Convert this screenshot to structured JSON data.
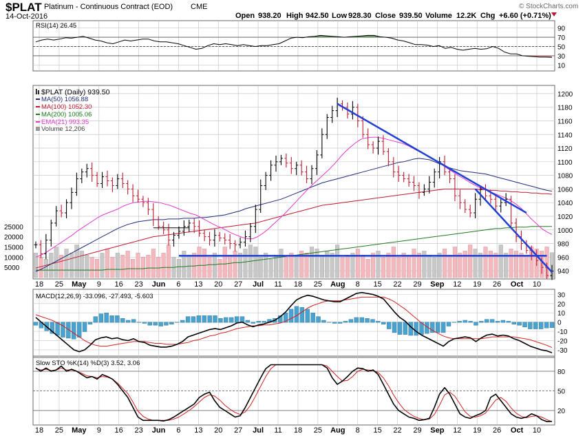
{
  "header": {
    "symbol": "$PLAT",
    "name": "Platinum - Continuous Contract (EOD)",
    "exchange": "CME",
    "date": "14-Oct-2016",
    "open_label": "Open",
    "open": "938.20",
    "high_label": "High",
    "high": "942.50",
    "low_label": "Low",
    "low": "928.30",
    "close_label": "Close",
    "close": "939.50",
    "volume_label": "Volume",
    "volume": "12.2K",
    "chg_label": "Chg",
    "chg": "+6.60 (+0.71%)",
    "watermark": "© StockCharts.com"
  },
  "colors": {
    "grid": "#c8c8c8",
    "ma50": "#1f2a7a",
    "ma100": "#c0192f",
    "ma200": "#1d7a1d",
    "ema21": "#e23ad0",
    "volume_up": "#c8c8c8",
    "volume_down": "#f2b9be",
    "trend": "#1f3fd6",
    "macd_hist": "#4aa3cf",
    "fill_green": "#4f8b4f",
    "fill_red": "#d07a7a"
  },
  "chart_data": [
    {
      "type": "line",
      "name": "rsi",
      "title": "RSI(14) 26.45",
      "ylim": [
        0,
        100
      ],
      "y_ticks": [
        "90",
        "70",
        "50",
        "30",
        "10"
      ],
      "levels": [
        70,
        50,
        30
      ],
      "values": [
        60,
        64,
        66,
        64,
        66,
        69,
        68,
        70,
        72,
        68,
        64,
        62,
        58,
        56,
        60,
        64,
        62,
        64,
        66,
        66,
        62,
        60,
        60,
        58,
        56,
        52,
        48,
        44,
        46,
        52,
        56,
        54,
        56,
        54,
        52,
        54,
        52,
        50,
        52,
        52,
        54,
        56,
        62,
        68,
        70,
        69,
        71,
        72,
        74,
        73,
        72,
        71,
        70,
        71,
        72,
        73,
        74,
        74,
        71,
        70,
        68,
        64,
        62,
        58,
        54,
        54,
        53,
        50,
        52,
        46,
        48,
        44,
        42,
        44,
        46,
        44,
        45,
        50,
        46,
        38,
        34,
        34,
        30,
        29,
        28,
        27,
        27,
        26.45
      ]
    },
    {
      "type": "candlestick",
      "name": "price",
      "legend": {
        "price": "$PLAT (Daily) 939.50",
        "ma50": "MA(50) 1056.88",
        "ma100": "MA(100) 1052.30",
        "ma200": "MA(200) 1005.06",
        "ema21": "EMA(21) 993.35",
        "volume": "Volume 12,206"
      },
      "ylim": [
        930,
        1210
      ],
      "y_ticks": [
        "1200",
        "1180",
        "1160",
        "1140",
        "1120",
        "1100",
        "1080",
        "1060",
        "1040",
        "1020",
        "1000",
        "980",
        "960",
        "940"
      ],
      "volume_ticks": [
        "25000",
        "20000",
        "15000",
        "10000",
        "5000"
      ],
      "volume_max": 32000,
      "x_labels": [
        "18",
        "25",
        "May",
        "9",
        "16",
        "23",
        "Jun",
        "6",
        "13",
        "20",
        "27",
        "Jul",
        "11",
        "18",
        "25",
        "Aug",
        "8",
        "15",
        "22",
        "29",
        "Sep",
        "12",
        "19",
        "26",
        "Oct",
        "10"
      ],
      "bold_x_labels": [
        "May",
        "Jun",
        "Jul",
        "Aug",
        "Sep",
        "Oct"
      ],
      "close": [
        978,
        965,
        985,
        1010,
        1028,
        1025,
        1040,
        1055,
        1075,
        1085,
        1090,
        1080,
        1068,
        1078,
        1072,
        1065,
        1075,
        1068,
        1060,
        1050,
        1045,
        1040,
        1030,
        1015,
        1005,
        1000,
        985,
        992,
        998,
        1005,
        1010,
        1005,
        995,
        990,
        985,
        992,
        988,
        985,
        980,
        978,
        982,
        990,
        1005,
        1030,
        1065,
        1080,
        1095,
        1100,
        1105,
        1098,
        1090,
        1095,
        1085,
        1075,
        1090,
        1110,
        1140,
        1165,
        1175,
        1185,
        1180,
        1170,
        1180,
        1160,
        1140,
        1125,
        1120,
        1130,
        1115,
        1100,
        1085,
        1080,
        1075,
        1070,
        1065,
        1055,
        1060,
        1070,
        1085,
        1100,
        1085,
        1075,
        1050,
        1040,
        1030,
        1025,
        1045,
        1060,
        1050,
        1045,
        1035,
        1040,
        1045,
        1010,
        990,
        980,
        970,
        962,
        955,
        945,
        933,
        939.5
      ],
      "ma50": [
        939,
        942,
        946,
        950,
        954,
        958,
        962,
        966,
        970,
        974,
        978,
        982,
        986,
        990,
        994,
        998,
        1002,
        1005,
        1008,
        1010,
        1012,
        1013,
        1014,
        1015,
        1015,
        1015,
        1016,
        1016,
        1016,
        1017,
        1017,
        1017,
        1018,
        1018,
        1019,
        1020,
        1021,
        1022,
        1024,
        1026,
        1028,
        1031,
        1033,
        1035,
        1037,
        1039,
        1041,
        1043,
        1045,
        1048,
        1051,
        1054,
        1057,
        1060,
        1063,
        1066,
        1069,
        1071,
        1073,
        1075,
        1077,
        1079,
        1081,
        1083,
        1085,
        1087,
        1089,
        1091,
        1093,
        1095,
        1097,
        1099,
        1100,
        1102,
        1104,
        1105,
        1104,
        1103,
        1100,
        1097,
        1094,
        1091,
        1089,
        1087,
        1086,
        1085,
        1084,
        1083,
        1082,
        1080,
        1078,
        1076,
        1074,
        1072,
        1070,
        1068,
        1066,
        1064,
        1062,
        1060,
        1058,
        1056.88
      ],
      "ma100": [
        944,
        946,
        948,
        950,
        952,
        954,
        956,
        958,
        960,
        962,
        964,
        966,
        968,
        970,
        972,
        974,
        976,
        978,
        980,
        982,
        984,
        986,
        988,
        990,
        991,
        992,
        993,
        994,
        995,
        996,
        997,
        998,
        999,
        1000,
        1001,
        1002,
        1003,
        1004,
        1005,
        1006,
        1007,
        1008,
        1009,
        1010,
        1012,
        1014,
        1016,
        1018,
        1020,
        1022,
        1024,
        1026,
        1028,
        1030,
        1032,
        1034,
        1036,
        1037,
        1038,
        1039,
        1040,
        1041,
        1042,
        1043,
        1044,
        1045,
        1046,
        1047,
        1048,
        1049,
        1050,
        1051,
        1052,
        1053,
        1054,
        1055,
        1056,
        1057,
        1058,
        1059,
        1060,
        1060,
        1060,
        1060,
        1060,
        1060,
        1060,
        1059,
        1059,
        1058,
        1058,
        1057,
        1057,
        1056,
        1056,
        1055,
        1055,
        1054,
        1054,
        1053,
        1053,
        1052.3
      ],
      "ma200": [
        941,
        941,
        941,
        941,
        941,
        941,
        941,
        941,
        941,
        941,
        941,
        941,
        941,
        941,
        942,
        942,
        942,
        942,
        943,
        943,
        943,
        943,
        944,
        944,
        944,
        945,
        945,
        945,
        946,
        946,
        947,
        947,
        948,
        948,
        949,
        949,
        950,
        950,
        951,
        952,
        952,
        953,
        954,
        955,
        956,
        957,
        958,
        959,
        960,
        961,
        962,
        963,
        964,
        965,
        966,
        967,
        968,
        969,
        970,
        971,
        972,
        973,
        974,
        975,
        976,
        977,
        978,
        979,
        980,
        981,
        982,
        983,
        984,
        985,
        986,
        987,
        988,
        989,
        990,
        991,
        992,
        993,
        994,
        995,
        996,
        997,
        998,
        999,
        1000,
        1001,
        1002,
        1002,
        1003,
        1003,
        1004,
        1004,
        1004,
        1005,
        1005,
        1005,
        1005,
        1005.06
      ],
      "ema21": [
        960,
        963,
        967,
        972,
        977,
        982,
        987,
        992,
        998,
        1003,
        1008,
        1013,
        1018,
        1022,
        1025,
        1028,
        1031,
        1035,
        1038,
        1040,
        1041,
        1042,
        1042,
        1041,
        1040,
        1038,
        1036,
        1033,
        1030,
        1027,
        1024,
        1022,
        1018,
        1014,
        1010,
        1006,
        1003,
        999,
        995,
        992,
        989,
        987,
        987,
        990,
        995,
        1001,
        1008,
        1015,
        1022,
        1030,
        1038,
        1046,
        1054,
        1062,
        1069,
        1076,
        1083,
        1090,
        1098,
        1107,
        1115,
        1122,
        1128,
        1133,
        1135,
        1136,
        1136,
        1135,
        1133,
        1131,
        1129,
        1127,
        1124,
        1120,
        1116,
        1112,
        1108,
        1104,
        1099,
        1094,
        1089,
        1084,
        1079,
        1075,
        1070,
        1066,
        1062,
        1059,
        1056,
        1053,
        1050,
        1047,
        1043,
        1038,
        1032,
        1024,
        1016,
        1009,
        1002,
        997,
        993.35
      ],
      "volume": [
        12000,
        10000,
        9000,
        12000,
        15000,
        11000,
        14000,
        12000,
        16000,
        13000,
        11000,
        10000,
        9000,
        12000,
        14000,
        10000,
        12000,
        11000,
        13000,
        9000,
        12000,
        10000,
        11000,
        14000,
        10000,
        12000,
        16000,
        10000,
        9000,
        13000,
        11000,
        12000,
        15000,
        14000,
        10000,
        12000,
        9000,
        15000,
        11000,
        13000,
        12000,
        14000,
        16000,
        15000,
        10000,
        12000,
        9000,
        11000,
        14000,
        10000,
        12000,
        11000,
        13000,
        12000,
        15000,
        14000,
        11000,
        13000,
        12000,
        16000,
        10000,
        11000,
        12000,
        14000,
        11000,
        9000,
        12000,
        13000,
        10000,
        12000,
        15000,
        10000,
        12000,
        11000,
        14000,
        12000,
        13000,
        11000,
        10000,
        12000,
        14000,
        11000,
        15000,
        12000,
        13000,
        16000,
        14000,
        12000,
        15000,
        13000,
        12000,
        16000,
        12000,
        14000,
        13000,
        12000,
        11000,
        15000,
        14000,
        13000,
        15000,
        12206
      ],
      "support_level": 962,
      "trendlines": [
        {
          "from": {
            "bar": 59,
            "price": 1185
          },
          "to": {
            "bar": 96,
            "price": 1025
          }
        },
        {
          "from": {
            "bar": 86,
            "price": 1060
          },
          "to": {
            "bar": 101,
            "price": 938
          }
        }
      ]
    },
    {
      "type": "line",
      "name": "macd",
      "title": "MACD(12,26,9) -33.096, -27.493, -5.603",
      "ylim": [
        -36,
        34
      ],
      "y_ticks": [
        "30",
        "20",
        "10",
        "0",
        "-10",
        "-20",
        "-30"
      ],
      "macd": [
        5,
        0,
        -5,
        -10,
        -15,
        -20,
        -25,
        -30,
        -32,
        -30,
        -25,
        -19,
        -17,
        -16,
        -18,
        -17,
        -19,
        -20,
        -18,
        -21,
        -22,
        -25,
        -26,
        -27,
        -27,
        -26,
        -24,
        -21,
        -16,
        -14,
        -12,
        -10,
        -8,
        -7,
        -8,
        -6,
        -4,
        -1,
        0,
        -3,
        -5,
        -3,
        -2,
        0,
        2,
        6,
        11,
        18,
        24,
        27,
        29,
        28,
        26,
        24,
        23,
        22,
        22,
        25,
        28,
        31,
        32,
        31,
        30,
        28,
        25,
        18,
        11,
        5,
        1,
        -5,
        -10,
        -14,
        -17,
        -20,
        -23,
        -26,
        -21,
        -18,
        -17,
        -16,
        -17,
        -21,
        -17,
        -14,
        -13,
        -15,
        -14,
        -15,
        -18,
        -20,
        -23,
        -26,
        -28,
        -30,
        -31,
        -33.096
      ],
      "signal": [
        8,
        6,
        4,
        2,
        -1,
        -4,
        -8,
        -12,
        -16,
        -20,
        -23,
        -25,
        -26,
        -26,
        -25,
        -24,
        -23,
        -22,
        -21,
        -21,
        -21,
        -22,
        -23,
        -23,
        -24,
        -24,
        -24,
        -23,
        -22,
        -20,
        -19,
        -17,
        -15,
        -14,
        -12,
        -11,
        -9,
        -7,
        -6,
        -5,
        -4,
        -4,
        -3,
        -3,
        -2,
        -1,
        1,
        4,
        7,
        11,
        15,
        18,
        20,
        22,
        23,
        23,
        23,
        24,
        25,
        26,
        27,
        27,
        27,
        27,
        27,
        25,
        22,
        18,
        14,
        9,
        4,
        -1,
        -5,
        -9,
        -12,
        -15,
        -17,
        -18,
        -18,
        -18,
        -18,
        -18,
        -18,
        -17,
        -16,
        -16,
        -16,
        -16,
        -16,
        -17,
        -18,
        -19,
        -21,
        -23,
        -25,
        -27.493
      ]
    },
    {
      "type": "line",
      "name": "stochastic",
      "title": "Slow STO %K(14) %D(3) 3.52, 3.06",
      "ylim": [
        0,
        100
      ],
      "y_ticks": [
        "80",
        "50",
        "20"
      ],
      "levels": [
        80,
        50,
        20
      ],
      "k": [
        85,
        80,
        85,
        80,
        82,
        88,
        80,
        83,
        80,
        75,
        70,
        72,
        68,
        75,
        72,
        68,
        60,
        50,
        40,
        25,
        10,
        5,
        5,
        5,
        5,
        4,
        6,
        10,
        15,
        20,
        25,
        30,
        40,
        45,
        48,
        35,
        25,
        20,
        15,
        10,
        12,
        25,
        40,
        55,
        70,
        84,
        90,
        90,
        90,
        90,
        90,
        90,
        90,
        90,
        90,
        90,
        90,
        85,
        70,
        60,
        65,
        72,
        80,
        85,
        84,
        80,
        82,
        75,
        60,
        45,
        30,
        20,
        15,
        10,
        8,
        5,
        6,
        8,
        25,
        45,
        55,
        45,
        30,
        15,
        10,
        8,
        12,
        15,
        20,
        40,
        45,
        35,
        25,
        15,
        10,
        8,
        10,
        15,
        12,
        6,
        3,
        3.52
      ],
      "d": [
        84,
        82,
        83,
        81,
        82,
        85,
        82,
        82,
        80,
        77,
        73,
        72,
        70,
        72,
        71,
        68,
        62,
        54,
        46,
        33,
        19,
        11,
        7,
        5,
        5,
        5,
        5,
        7,
        10,
        15,
        20,
        26,
        33,
        40,
        44,
        42,
        36,
        28,
        22,
        17,
        14,
        18,
        28,
        42,
        57,
        72,
        84,
        90,
        90,
        90,
        90,
        90,
        90,
        90,
        90,
        90,
        90,
        88,
        80,
        72,
        65,
        66,
        72,
        80,
        83,
        82,
        81,
        78,
        70,
        58,
        44,
        32,
        22,
        16,
        11,
        8,
        6,
        7,
        14,
        28,
        44,
        48,
        42,
        30,
        18,
        11,
        10,
        12,
        16,
        26,
        36,
        40,
        34,
        24,
        16,
        11,
        9,
        11,
        12,
        10,
        6,
        3.06
      ]
    }
  ]
}
